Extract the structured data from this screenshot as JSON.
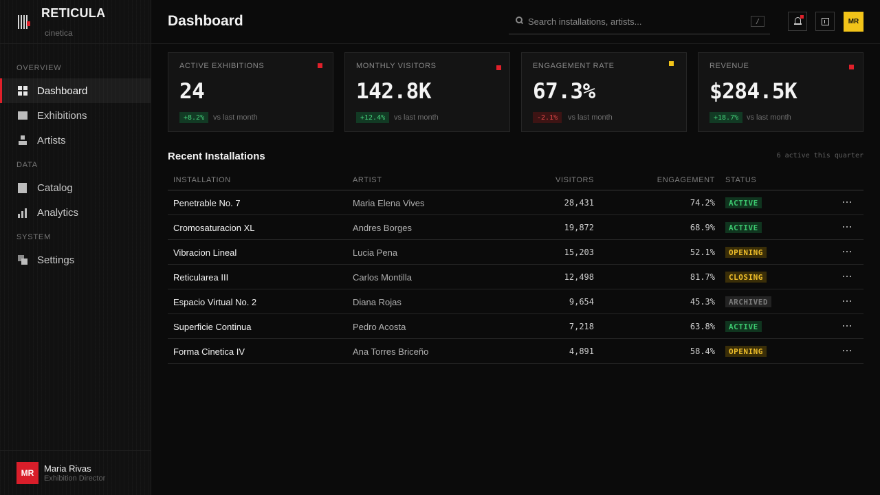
{
  "brand": {
    "name": "RETICULA",
    "subtitle": "cinetica"
  },
  "sidebar": {
    "sections": [
      "OVERVIEW",
      "DATA",
      "SYSTEM"
    ],
    "items": [
      {
        "label": "Dashboard",
        "icon": "grid-icon"
      },
      {
        "label": "Exhibitions",
        "icon": "frame-icon"
      },
      {
        "label": "Artists",
        "icon": "artist-icon"
      },
      {
        "label": "Catalog",
        "icon": "document-icon"
      },
      {
        "label": "Analytics",
        "icon": "bar-chart-icon"
      },
      {
        "label": "Settings",
        "icon": "settings-icon"
      }
    ],
    "active": "Dashboard"
  },
  "user": {
    "initials": "MR",
    "name": "Maria Rivas",
    "role": "Exhibition Director"
  },
  "header": {
    "title": "Dashboard",
    "search_placeholder": "Search installations, artists...",
    "search_shortcut": "/",
    "avatar_initials": "MR"
  },
  "colors": {
    "accent_red": "#e0202a",
    "accent_yellow": "#f2c419",
    "positive": "#45d07a",
    "negative": "#e34848"
  },
  "stats": [
    {
      "label": "ACTIVE EXHIBITIONS",
      "value": "24",
      "delta": "+8.2%",
      "direction": "up",
      "note": "vs last month",
      "mark_color": "#e0202a"
    },
    {
      "label": "MONTHLY VISITORS",
      "value": "142.8K",
      "delta": "+12.4%",
      "direction": "up",
      "note": "vs last month",
      "mark_color": "#e0202a"
    },
    {
      "label": "ENGAGEMENT RATE",
      "value": "67.3%",
      "delta": "-2.1%",
      "direction": "down",
      "note": "vs last month",
      "mark_color": "#f2c419"
    },
    {
      "label": "REVENUE",
      "value": "$284.5K",
      "delta": "+18.7%",
      "direction": "up",
      "note": "vs last month",
      "mark_color": "#e0202a"
    }
  ],
  "recent": {
    "title": "Recent Installations",
    "meta": "6 active this quarter",
    "columns": [
      "INSTALLATION",
      "ARTIST",
      "VISITORS",
      "ENGAGEMENT",
      "STATUS"
    ],
    "rows": [
      {
        "name": "Penetrable No. 7",
        "artist": "Maria Elena Vives",
        "visitors": "28,431",
        "engagement": "74.2%",
        "status": "ACTIVE"
      },
      {
        "name": "Cromosaturacion XL",
        "artist": "Andres Borges",
        "visitors": "19,872",
        "engagement": "68.9%",
        "status": "ACTIVE"
      },
      {
        "name": "Vibracion Lineal",
        "artist": "Lucia Pena",
        "visitors": "15,203",
        "engagement": "52.1%",
        "status": "OPENING"
      },
      {
        "name": "Reticularea III",
        "artist": "Carlos Montilla",
        "visitors": "12,498",
        "engagement": "81.7%",
        "status": "CLOSING"
      },
      {
        "name": "Espacio Virtual No. 2",
        "artist": "Diana Rojas",
        "visitors": "9,654",
        "engagement": "45.3%",
        "status": "ARCHIVED"
      },
      {
        "name": "Superficie Continua",
        "artist": "Pedro Acosta",
        "visitors": "7,218",
        "engagement": "63.8%",
        "status": "ACTIVE"
      },
      {
        "name": "Forma Cinetica IV",
        "artist": "Ana Torres Briceño",
        "visitors": "4,891",
        "engagement": "58.4%",
        "status": "OPENING"
      }
    ]
  }
}
